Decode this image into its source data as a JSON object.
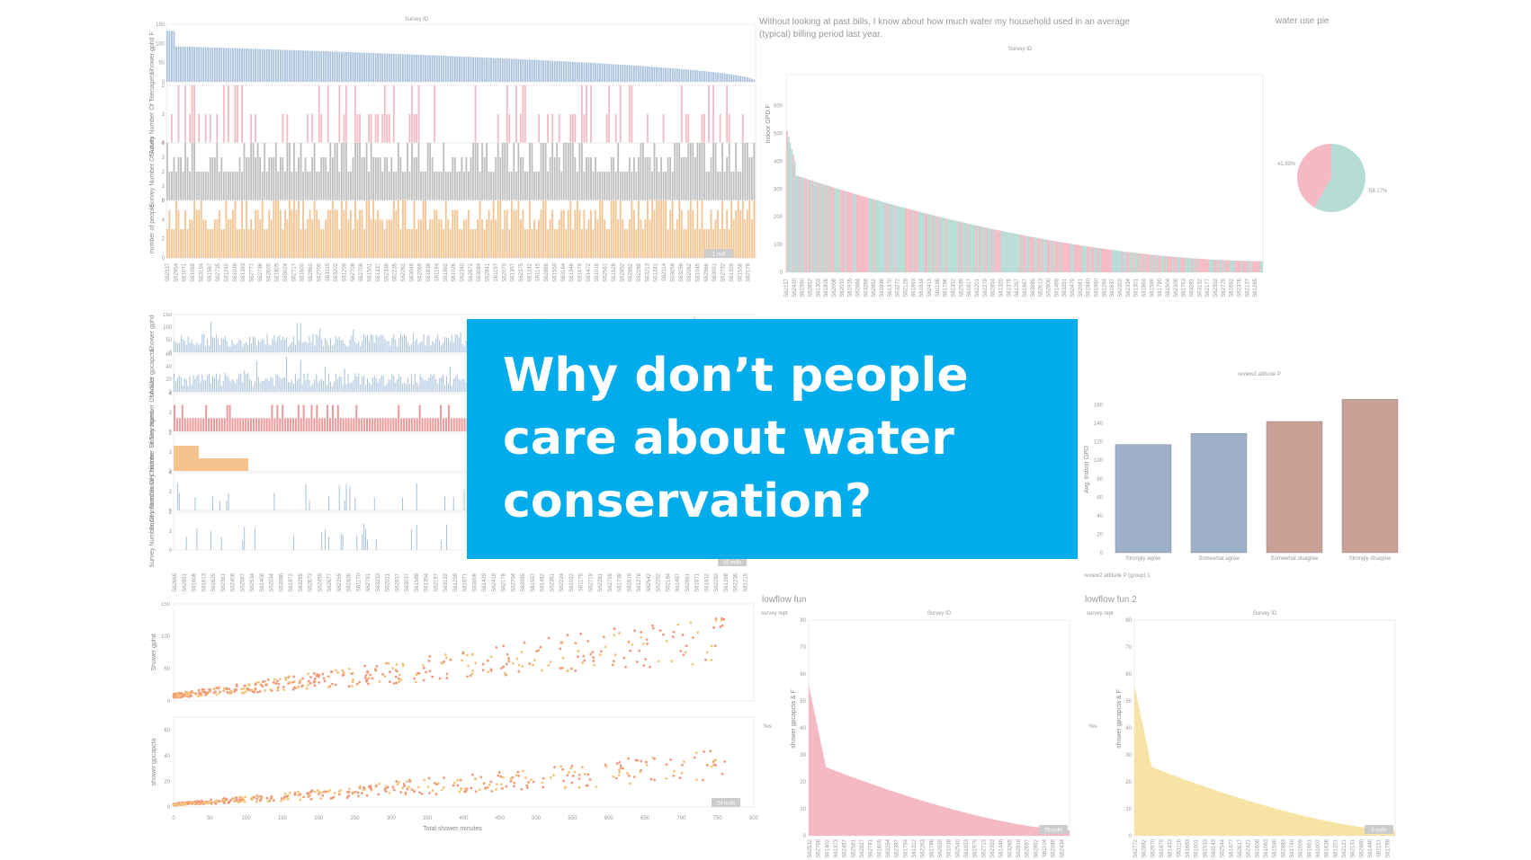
{
  "banner": {
    "title": "Why don’t people care about water conservation?"
  },
  "colors": {
    "blue": "#a7c0dc",
    "pink": "#f5b9c4",
    "gray": "#bdbdbd",
    "orange": "#f6c28e",
    "teal": "#b7dbd5",
    "salmon": "#ec9a9a",
    "slate": "#9eb0c9",
    "rose": "#c9a095",
    "yellow": "#f7e3a5",
    "banner": "#00aceb"
  },
  "chart_data": [
    {
      "id": "top-left",
      "type": "bar",
      "title": "Survey ID",
      "panels": [
        {
          "ylabel": "Shower gphd F",
          "ylim": [
            0,
            150
          ],
          "color": "blue",
          "ticks": [
            0,
            50,
            100,
            150
          ]
        },
        {
          "ylabel": "Survey Number Of Teenagers",
          "ylim": [
            0,
            2
          ],
          "color": "pink",
          "ticks": [
            0,
            1,
            2
          ]
        },
        {
          "ylabel": "Survey Number Of Adults",
          "ylim": [
            0,
            4
          ],
          "color": "gray",
          "ticks": [
            0,
            1,
            2,
            3,
            4
          ]
        },
        {
          "ylabel": "number of people",
          "ylim": [
            0,
            6
          ],
          "color": "orange",
          "ticks": [
            0,
            2,
            4,
            6
          ]
        }
      ],
      "badge": "1 null"
    },
    {
      "id": "top-right",
      "type": "bar",
      "heading": "Without looking at past bills, I know about how much water my household used in an average (typical) billing period last year.",
      "title": "Survey ID",
      "ylabel": "Indoor GPD F",
      "ylim": [
        0,
        600
      ],
      "ticks": [
        0,
        100,
        200,
        300,
        400,
        500,
        600
      ]
    },
    {
      "id": "pie",
      "type": "pie",
      "title": "water use pie",
      "slices": [
        {
          "label": "41.83%",
          "value": 41.83,
          "color": "pink"
        },
        {
          "label": "58.17%",
          "value": 58.17,
          "color": "teal"
        }
      ]
    },
    {
      "id": "mid-left",
      "type": "bar",
      "panels": [
        {
          "ylabel": "Shower gphd",
          "color": "blue",
          "ticks": [
            0,
            50,
            100,
            150
          ]
        },
        {
          "ylabel": "shower gpcapcta",
          "color": "blue",
          "ticks": [
            0,
            20,
            40,
            60
          ]
        },
        {
          "ylabel": "Survey Number Of Adults",
          "color": "salmon",
          "ticks": [
            0,
            2,
            4
          ]
        },
        {
          "ylabel": "Survey Number Of Teenagers",
          "color": "orange",
          "ticks": [
            0,
            1,
            2
          ]
        },
        {
          "ylabel": "Survey Number Of Children",
          "color": "blue",
          "ticks": [
            0,
            2,
            4
          ]
        },
        {
          "ylabel": "Survey Number Of Infants",
          "color": "blue",
          "ticks": [
            0,
            1,
            2
          ]
        }
      ],
      "badge": "16 nulls"
    },
    {
      "id": "mid-right",
      "type": "bar",
      "title": "review2 attitude P",
      "ylabel": "Avg. Indoor GPD",
      "ylim": [
        0,
        180
      ],
      "ticks": [
        0,
        20,
        40,
        60,
        80,
        100,
        120,
        140,
        160
      ],
      "categories": [
        "Strongly agree",
        "Somewhat agree",
        "Somewhat disagree",
        "Strongly disagree"
      ],
      "values": [
        117,
        129,
        142,
        166
      ],
      "bar_colors": [
        "slate",
        "slate",
        "rose",
        "rose"
      ],
      "legend_title": "review2 attitude P (group) 1",
      "legend": [
        {
          "label": "Somewhat agre..",
          "color": "slate"
        },
        {
          "label": "Somewhat disa..",
          "color": "rose"
        }
      ]
    },
    {
      "id": "bottom-left",
      "type": "scatter",
      "xlabel": "Total shower minutes",
      "xlim": [
        0,
        800
      ],
      "xticks": [
        0,
        50,
        100,
        150,
        200,
        250,
        300,
        350,
        400,
        450,
        500,
        550,
        600,
        650,
        700,
        750,
        800
      ],
      "panels": [
        {
          "ylabel": "Shower gphd",
          "ylim": [
            0,
            150
          ],
          "ticks": [
            0,
            50,
            100,
            150
          ]
        },
        {
          "ylabel": "shower gpcapcta",
          "ylim": [
            0,
            70
          ],
          "ticks": [
            0,
            20,
            40,
            60
          ]
        }
      ],
      "badge": "24 nulls"
    },
    {
      "id": "bottom-mid",
      "type": "area",
      "heading": "lowflow fun",
      "corner": "survey rept",
      "title": "Survey ID",
      "ylabel": "shower gpcapcta & F",
      "sidelabel": "Yes",
      "ylim": [
        0,
        80
      ],
      "ticks": [
        0,
        10,
        20,
        30,
        40,
        50,
        60,
        70,
        80
      ],
      "color": "pink",
      "badge": "79 nulls"
    },
    {
      "id": "bottom-right",
      "type": "area",
      "heading": "lowflow fun 2",
      "corner": "survey rept",
      "title": "Survey ID",
      "ylabel": "shower gpcapcta & F",
      "sidelabel": "Yes",
      "ylim": [
        0,
        80
      ],
      "ticks": [
        0,
        10,
        20,
        30,
        40,
        50,
        60,
        70,
        80
      ],
      "color": "yellow",
      "badge": "5 nulls"
    }
  ]
}
